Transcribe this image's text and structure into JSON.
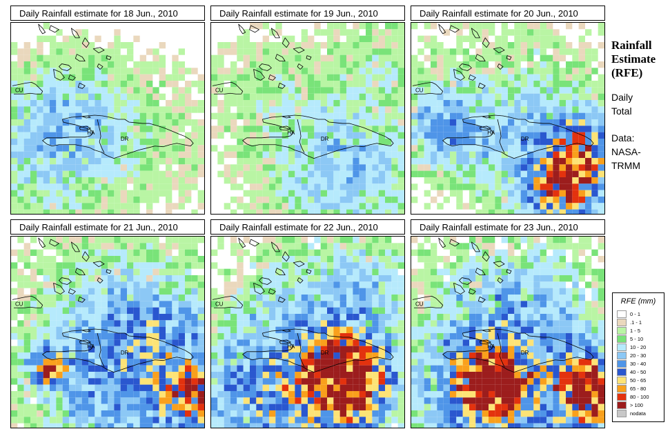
{
  "side": {
    "title_line1": "Rainfall",
    "title_line2": "Estimate",
    "title_line3": "(RFE)",
    "period_line1": "Daily",
    "period_line2": "Total",
    "source_line1": "Data:",
    "source_line2": "NASA-",
    "source_line3": "TRMM"
  },
  "legend": {
    "title": "RFE (mm)",
    "classes": [
      {
        "label": "0 - 1",
        "color": "#ffffff"
      },
      {
        "label": ".1 - 1",
        "color": "#ead8bd"
      },
      {
        "label": "1 - 5",
        "color": "#b9f5a4"
      },
      {
        "label": "5 - 10",
        "color": "#79e379"
      },
      {
        "label": "10 - 20",
        "color": "#b6eafc"
      },
      {
        "label": "20 - 30",
        "color": "#8cc8f5"
      },
      {
        "label": "30 - 40",
        "color": "#4f95e8"
      },
      {
        "label": "40 - 50",
        "color": "#2a57cf"
      },
      {
        "label": "50 - 65",
        "color": "#fde376"
      },
      {
        "label": "65 - 80",
        "color": "#f9a01c"
      },
      {
        "label": "80 - 100",
        "color": "#e3320e"
      },
      {
        "label": "> 100",
        "color": "#9c1d1d"
      },
      {
        "label": "nodata",
        "color": "#c8c8c8"
      }
    ]
  },
  "country_labels": {
    "cuba": "CU",
    "haiti": "HA",
    "dominican_republic": "DR"
  },
  "panels": [
    {
      "title": "Daily Rainfall estimate for  18 Jun., 2010",
      "intensity": 0.25,
      "seed": 11,
      "storms": [
        [
          0.15,
          0.55,
          0.25,
          1.2
        ],
        [
          0.35,
          0.45,
          0.2,
          1.0
        ],
        [
          0.2,
          0.78,
          0.25,
          0.9
        ],
        [
          0.75,
          0.6,
          0.3,
          0.8
        ]
      ]
    },
    {
      "title": "Daily Rainfall estimate for  19 Jun., 2010",
      "intensity": 0.3,
      "seed": 23,
      "storms": [
        [
          0.75,
          0.78,
          0.25,
          1.6
        ],
        [
          0.55,
          0.7,
          0.3,
          1.0
        ],
        [
          0.25,
          0.3,
          0.2,
          0.8
        ],
        [
          0.9,
          0.2,
          0.2,
          0.9
        ]
      ]
    },
    {
      "title": "Daily Rainfall estimate for  20 Jun., 2010",
      "intensity": 0.55,
      "seed": 37,
      "storms": [
        [
          0.8,
          0.85,
          0.12,
          6.0
        ],
        [
          0.9,
          0.65,
          0.12,
          3.5
        ],
        [
          0.15,
          0.55,
          0.15,
          2.5
        ],
        [
          0.5,
          0.4,
          0.35,
          1.0
        ],
        [
          0.7,
          0.7,
          0.25,
          1.8
        ]
      ]
    },
    {
      "title": "Daily Rainfall estimate for  21 Jun., 2010",
      "intensity": 0.7,
      "seed": 41,
      "storms": [
        [
          0.2,
          0.68,
          0.06,
          6.5
        ],
        [
          0.95,
          0.82,
          0.1,
          5.5
        ],
        [
          0.6,
          0.8,
          0.35,
          2.6
        ],
        [
          0.45,
          0.35,
          0.35,
          1.0
        ],
        [
          0.8,
          0.55,
          0.2,
          2.0
        ]
      ]
    },
    {
      "title": "Daily Rainfall estimate for  22 Jun., 2010",
      "intensity": 0.9,
      "seed": 53,
      "storms": [
        [
          0.7,
          0.75,
          0.14,
          9.5
        ],
        [
          0.5,
          0.82,
          0.3,
          2.5
        ],
        [
          0.25,
          0.82,
          0.25,
          2.2
        ],
        [
          0.85,
          0.3,
          0.2,
          1.5
        ],
        [
          0.5,
          0.3,
          0.3,
          1.2
        ]
      ]
    },
    {
      "title": "Daily Rainfall estimate for  23 Jun., 2010",
      "intensity": 0.95,
      "seed": 67,
      "storms": [
        [
          0.42,
          0.75,
          0.1,
          9.0
        ],
        [
          0.92,
          0.8,
          0.11,
          9.0
        ],
        [
          0.6,
          0.75,
          0.35,
          2.8
        ],
        [
          0.3,
          0.85,
          0.25,
          2.2
        ],
        [
          0.5,
          0.3,
          0.3,
          1.3
        ]
      ]
    }
  ]
}
